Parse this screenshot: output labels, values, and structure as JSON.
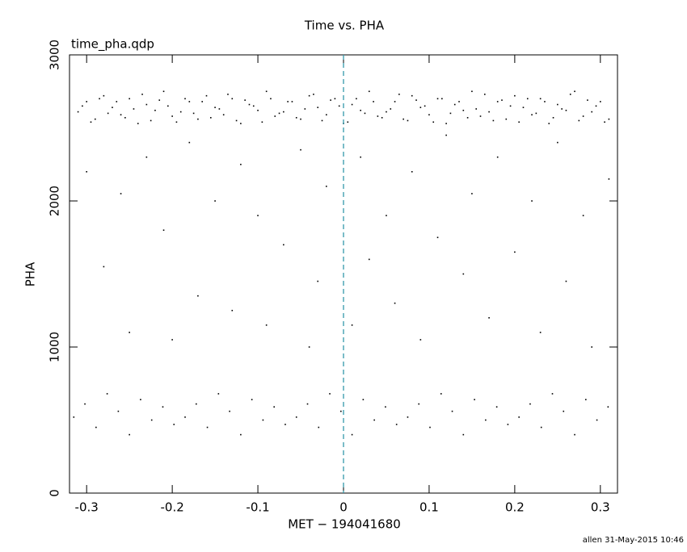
{
  "chart_data": {
    "type": "scatter",
    "title": "Time vs. PHA",
    "subtitle": "time_pha.qdp",
    "x_label": "MET − 194041680",
    "y_label": "PHA",
    "footer": "allen 31-May-2015 10:46",
    "xlim": [
      -0.32,
      0.32
    ],
    "xticks": [
      -0.3,
      -0.2,
      -0.1,
      0,
      0.1,
      0.2,
      0.3
    ],
    "ylim": [
      0,
      3000
    ],
    "yticks": [
      0,
      1000,
      2000,
      3000
    ],
    "vline": 0,
    "vline_color": "#3399aa",
    "series": [
      {
        "color": "#000000",
        "x": [
          -0.31,
          -0.3,
          -0.29,
          -0.28,
          -0.27,
          -0.26,
          -0.25,
          -0.24,
          -0.23,
          -0.22,
          -0.21,
          -0.2,
          -0.19,
          -0.18,
          -0.17,
          -0.16,
          -0.15,
          -0.14,
          -0.13,
          -0.12,
          -0.11,
          -0.1,
          -0.09,
          -0.08,
          -0.07,
          -0.06,
          -0.05,
          -0.04,
          -0.03,
          -0.02,
          -0.01,
          0,
          0.01,
          0.02,
          0.03,
          0.04,
          0.05,
          0.06,
          0.07,
          0.08,
          0.09,
          0.1,
          0.11,
          0.12,
          0.13,
          0.14,
          0.15,
          0.16,
          0.17,
          0.18,
          0.19,
          0.2,
          0.21,
          0.22,
          0.23,
          0.24,
          0.25,
          0.26,
          0.27,
          0.28,
          0.29,
          0.3,
          0.31,
          -0.305,
          -0.295,
          -0.285,
          -0.275,
          -0.265,
          -0.255,
          -0.245,
          -0.235,
          -0.225,
          -0.215,
          -0.205,
          -0.195,
          -0.185,
          -0.175,
          -0.165,
          -0.155,
          -0.145,
          -0.135,
          -0.125,
          -0.115,
          -0.105,
          -0.095,
          -0.085,
          -0.075,
          -0.065,
          -0.055,
          -0.045,
          -0.035,
          -0.025,
          -0.015,
          -0.005,
          0.005,
          0.015,
          0.025,
          0.035,
          0.045,
          0.055,
          0.065,
          0.075,
          0.085,
          0.095,
          0.105,
          0.115,
          0.125,
          0.135,
          0.145,
          0.155,
          0.165,
          0.175,
          0.185,
          0.195,
          0.205,
          0.215,
          0.225,
          0.235,
          0.245,
          0.255,
          0.265,
          0.275,
          0.285,
          0.295,
          0.305,
          -0.3,
          -0.28,
          -0.26,
          -0.25,
          -0.23,
          -0.21,
          -0.2,
          -0.18,
          -0.17,
          -0.15,
          -0.13,
          -0.12,
          -0.1,
          -0.09,
          -0.07,
          -0.05,
          -0.04,
          -0.03,
          -0.02,
          0.01,
          0.02,
          0.03,
          0.05,
          0.06,
          0.08,
          0.09,
          0.11,
          0.12,
          0.14,
          0.15,
          0.17,
          0.18,
          0.2,
          0.22,
          0.23,
          0.25,
          0.26,
          0.28,
          0.29,
          0.31,
          -0.315,
          -0.302,
          -0.289,
          -0.276,
          -0.263,
          -0.25,
          -0.237,
          -0.224,
          -0.211,
          -0.198,
          -0.185,
          -0.172,
          -0.159,
          -0.146,
          -0.133,
          -0.12,
          -0.107,
          -0.094,
          -0.081,
          -0.068,
          -0.055,
          -0.042,
          -0.029,
          -0.016,
          -0.003,
          0.01,
          0.023,
          0.036,
          0.049,
          0.062,
          0.075,
          0.088,
          0.101,
          0.114,
          0.127,
          0.14,
          0.153,
          0.166,
          0.179,
          0.192,
          0.205,
          0.218,
          0.231,
          0.244,
          0.257,
          0.27,
          0.283,
          0.296,
          0.309
        ],
        "values": [
          2610,
          2680,
          2560,
          2720,
          2640,
          2590,
          2700,
          2530,
          2660,
          2620,
          2750,
          2580,
          2610,
          2680,
          2560,
          2720,
          2640,
          2590,
          2700,
          2530,
          2660,
          2620,
          2750,
          2580,
          2610,
          2680,
          2560,
          2720,
          2640,
          2590,
          2700,
          2530,
          2660,
          2620,
          2750,
          2580,
          2610,
          2680,
          2560,
          2720,
          2640,
          2590,
          2700,
          2530,
          2660,
          2620,
          2750,
          2580,
          2610,
          2680,
          2560,
          2720,
          2640,
          2590,
          2700,
          2530,
          2660,
          2620,
          2750,
          2580,
          2610,
          2680,
          2560,
          2650,
          2540,
          2700,
          2600,
          2680,
          2570,
          2630,
          2730,
          2550,
          2690,
          2650,
          2540,
          2700,
          2600,
          2680,
          2570,
          2630,
          2730,
          2550,
          2690,
          2650,
          2540,
          2700,
          2600,
          2680,
          2570,
          2630,
          2730,
          2550,
          2690,
          2650,
          2540,
          2700,
          2600,
          2680,
          2570,
          2630,
          2730,
          2550,
          2690,
          2650,
          2540,
          2700,
          2600,
          2680,
          2570,
          2630,
          2730,
          2550,
          2690,
          2650,
          2540,
          2700,
          2600,
          2680,
          2570,
          2630,
          2730,
          2550,
          2690,
          2650,
          2540,
          2200,
          1550,
          2050,
          1100,
          2300,
          1800,
          1050,
          2400,
          1350,
          2000,
          1250,
          2250,
          1900,
          1150,
          1700,
          2350,
          1000,
          1450,
          2100,
          1150,
          2300,
          1600,
          1900,
          1300,
          2200,
          1050,
          1750,
          2450,
          1500,
          2050,
          1200,
          2300,
          1650,
          2000,
          1100,
          2400,
          1450,
          1900,
          1000,
          2150,
          520,
          610,
          450,
          680,
          560,
          400,
          640,
          500,
          590,
          470,
          520,
          610,
          450,
          680,
          560,
          400,
          640,
          500,
          590,
          470,
          520,
          610,
          450,
          680,
          560,
          400,
          640,
          500,
          590,
          470,
          520,
          610,
          450,
          680,
          560,
          400,
          640,
          500,
          590,
          470,
          520,
          610,
          450,
          680,
          560,
          400,
          640,
          500,
          590
        ]
      }
    ]
  }
}
